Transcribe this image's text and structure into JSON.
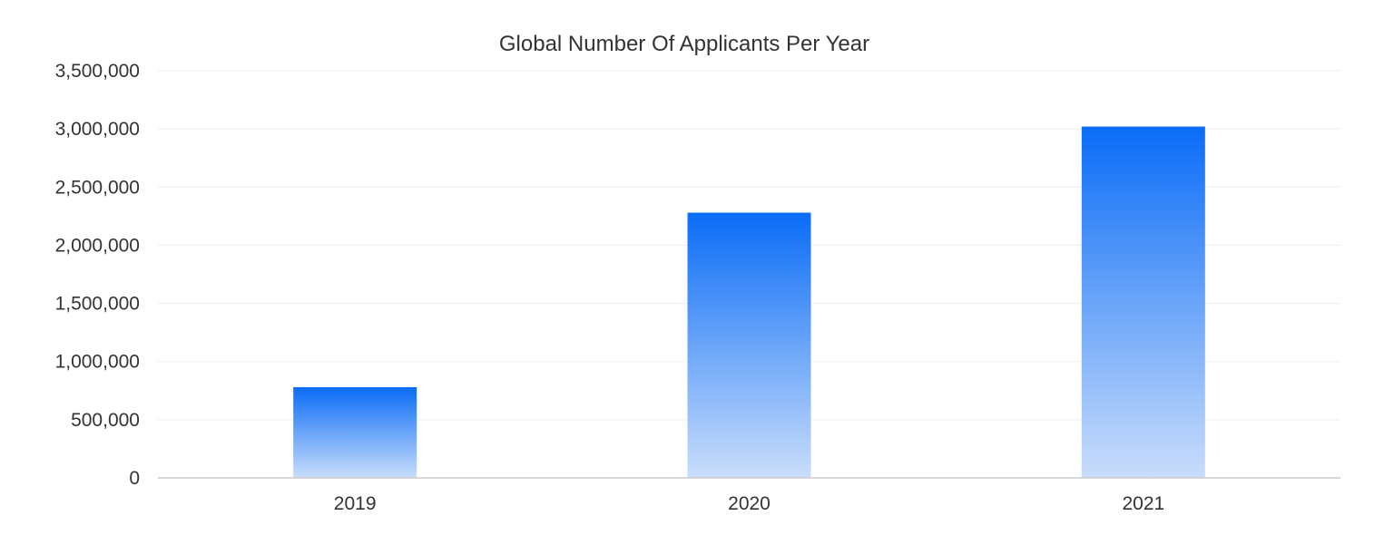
{
  "chart_data": {
    "type": "bar",
    "title": "Global Number Of Applicants Per Year",
    "xlabel": "",
    "ylabel": "",
    "categories": [
      "2019",
      "2020",
      "2021"
    ],
    "values": [
      780000,
      2280000,
      3020000
    ],
    "ylim": [
      0,
      3500000
    ],
    "yticks": [
      0,
      500000,
      1000000,
      1500000,
      2000000,
      2500000,
      3000000,
      3500000
    ],
    "ytick_labels": [
      "0",
      "500,000",
      "1,000,000",
      "1,500,000",
      "2,000,000",
      "2,500,000",
      "3,000,000",
      "3,500,000"
    ],
    "grid": true,
    "legend": false,
    "colors": {
      "bar_top": "#0a6cf7",
      "bar_bottom": "#c9ddfb",
      "grid": "#eeeeee",
      "axis": "#cccccc",
      "text": "#333333"
    }
  }
}
